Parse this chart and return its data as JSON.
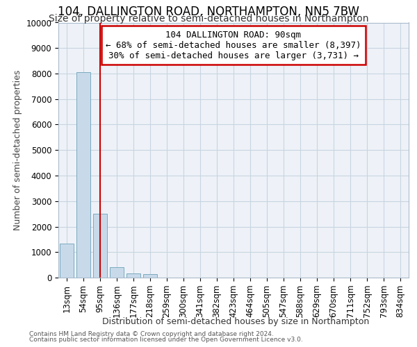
{
  "title": "104, DALLINGTON ROAD, NORTHAMPTON, NN5 7BW",
  "subtitle": "Size of property relative to semi-detached houses in Northampton",
  "xlabel_bottom": "Distribution of semi-detached houses by size in Northampton",
  "ylabel": "Number of semi-detached properties",
  "footer1": "Contains HM Land Registry data © Crown copyright and database right 2024.",
  "footer2": "Contains public sector information licensed under the Open Government Licence v3.0.",
  "categories": [
    "13sqm",
    "54sqm",
    "95sqm",
    "136sqm",
    "177sqm",
    "218sqm",
    "259sqm",
    "300sqm",
    "341sqm",
    "382sqm",
    "423sqm",
    "464sqm",
    "505sqm",
    "547sqm",
    "588sqm",
    "629sqm",
    "670sqm",
    "711sqm",
    "752sqm",
    "793sqm",
    "834sqm"
  ],
  "values": [
    1320,
    8050,
    2500,
    400,
    175,
    130,
    0,
    0,
    0,
    0,
    0,
    0,
    0,
    0,
    0,
    0,
    0,
    0,
    0,
    0,
    0
  ],
  "bar_color": "#c8daea",
  "bar_edge_color": "#7aaabf",
  "grid_color": "#c8d4e0",
  "plot_bg_color": "#eef2f8",
  "ylim": [
    0,
    10000
  ],
  "yticks": [
    0,
    1000,
    2000,
    3000,
    4000,
    5000,
    6000,
    7000,
    8000,
    9000,
    10000
  ],
  "redline_x": 2.0,
  "annotation_text": "104 DALLINGTON ROAD: 90sqm\n← 68% of semi-detached houses are smaller (8,397)\n30% of semi-detached houses are larger (3,731) →",
  "annotation_box_color": "#ffffff",
  "annotation_box_edge": "#cc0000",
  "title_fontsize": 12,
  "subtitle_fontsize": 10,
  "axis_label_fontsize": 9,
  "tick_fontsize": 8.5,
  "annotation_fontsize": 9
}
